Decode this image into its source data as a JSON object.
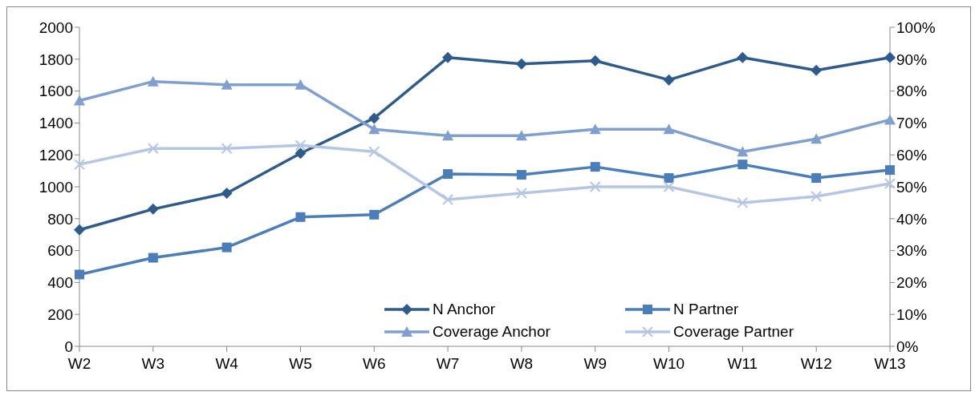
{
  "chart_data": {
    "type": "line",
    "categories": [
      "W2",
      "W3",
      "W4",
      "W5",
      "W6",
      "W7",
      "W8",
      "W9",
      "W10",
      "W11",
      "W12",
      "W13"
    ],
    "series": [
      {
        "name": "N Anchor",
        "color": "#2e5b8e",
        "marker": "diamond",
        "values": [
          730,
          860,
          960,
          1210,
          1430,
          1810,
          1770,
          1790,
          1670,
          1810,
          1730,
          1810
        ]
      },
      {
        "name": "N Partner",
        "color": "#4a7ebb",
        "marker": "square",
        "values": [
          450,
          555,
          620,
          810,
          825,
          1080,
          1075,
          1125,
          1055,
          1140,
          1055,
          1105
        ]
      },
      {
        "name": "Coverage Anchor",
        "color": "#7f9fd0",
        "marker": "triangle",
        "axis": "y2",
        "values": [
          77,
          83,
          82,
          82,
          68,
          66,
          66,
          68,
          68,
          61,
          65,
          71
        ]
      },
      {
        "name": "Coverage Partner",
        "color": "#b4c6e5",
        "marker": "cross",
        "axis": "y2",
        "values": [
          57,
          62,
          62,
          63,
          61,
          46,
          48,
          50,
          50,
          45,
          47,
          51
        ]
      }
    ],
    "ylim": [
      0,
      2000
    ],
    "yticks": [
      0,
      200,
      400,
      600,
      800,
      1000,
      1200,
      1400,
      1600,
      1800,
      2000
    ],
    "y2lim": [
      0,
      100
    ],
    "y2ticks": [
      {
        "value": 0,
        "label": "0%"
      },
      {
        "value": 10,
        "label": "10%"
      },
      {
        "value": 20,
        "label": "20%"
      },
      {
        "value": 30,
        "label": "30%"
      },
      {
        "value": 40,
        "label": "40%"
      },
      {
        "value": 50,
        "label": "50%"
      },
      {
        "value": 60,
        "label": "60%"
      },
      {
        "value": 70,
        "label": "70%"
      },
      {
        "value": 80,
        "label": "80%"
      },
      {
        "value": 90,
        "label": "90%"
      },
      {
        "value": 100,
        "label": "100%"
      }
    ],
    "grid": false,
    "legend": "bottom right",
    "line_style": "solid"
  }
}
